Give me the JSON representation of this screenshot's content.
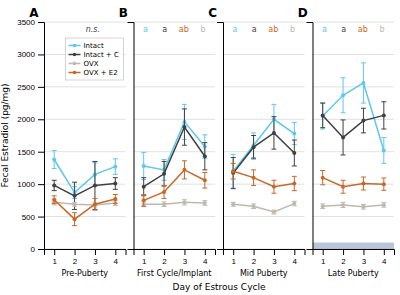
{
  "chart_data": [
    {
      "type": "line",
      "title": "A",
      "subtitle": "Pre-Puberty",
      "xlabel": "Day of Estrous Cycle",
      "ylabel": "Fecal Estradiol (pg/mg)",
      "x": [
        1,
        2,
        3,
        4
      ],
      "xlim": [
        0.5,
        4.5
      ],
      "xticks": [
        1,
        2,
        3,
        4
      ],
      "ylim": [
        0,
        3500
      ],
      "yticks": [
        0,
        500,
        1000,
        1500,
        2000,
        2500,
        3000,
        3500
      ],
      "grid": true,
      "legend": "upper right",
      "marker": "circle",
      "annotations": [
        {
          "text": "n.s.",
          "color": "#444444"
        }
      ],
      "series": [
        {
          "name": "Intact",
          "color": "#5bc8f0",
          "values": [
            1380,
            870,
            1150,
            1270
          ],
          "err": [
            140,
            90,
            180,
            120
          ]
        },
        {
          "name": "Intact + C",
          "color": "#404040",
          "values": [
            980,
            820,
            980,
            1010
          ],
          "err": [
            80,
            210,
            370,
            90
          ]
        },
        {
          "name": "OVX",
          "color": "#c0b8b0",
          "values": [
            720,
            690,
            680,
            710
          ],
          "err": [
            40,
            30,
            30,
            40
          ]
        },
        {
          "name": "OVX + E2",
          "color": "#c86828",
          "values": [
            760,
            460,
            690,
            770
          ],
          "err": [
            60,
            100,
            90,
            70
          ]
        }
      ]
    },
    {
      "type": "line",
      "title": "B",
      "subtitle": "First Cycle/Implant",
      "x": [
        1,
        2,
        3,
        4
      ],
      "xlim": [
        0.5,
        4.5
      ],
      "xticks": [
        1,
        2,
        3,
        4
      ],
      "ylim": [
        0,
        3500
      ],
      "yticks": [
        0,
        500,
        1000,
        1500,
        2000,
        2500,
        3000,
        3500
      ],
      "grid": true,
      "legend": false,
      "tick_labels": "x",
      "marker": "circle",
      "annotations": [
        {
          "text": "a",
          "color": "#5bc8f0"
        },
        {
          "text": "a",
          "color": "#404040"
        },
        {
          "text": "ab",
          "color": "#c86828"
        },
        {
          "text": "b",
          "color": "#c0b8b0"
        }
      ],
      "series": [
        {
          "name": "Intact",
          "color": "#5bc8f0",
          "values": [
            1280,
            1220,
            1960,
            1580
          ],
          "err": [
            210,
            160,
            270,
            180
          ]
        },
        {
          "name": "Intact + C",
          "color": "#404040",
          "values": [
            960,
            1160,
            1880,
            1430
          ],
          "err": [
            140,
            190,
            280,
            210
          ]
        },
        {
          "name": "OVX",
          "color": "#c0b8b0",
          "values": [
            690,
            690,
            720,
            710
          ],
          "err": [
            35,
            35,
            40,
            35
          ]
        },
        {
          "name": "OVX + E2",
          "color": "#c86828",
          "values": [
            750,
            880,
            1220,
            1060
          ],
          "err": [
            90,
            100,
            140,
            120
          ]
        }
      ]
    },
    {
      "type": "line",
      "title": "C",
      "subtitle": "Mid Puberty",
      "x": [
        1,
        2,
        3,
        4
      ],
      "xlim": [
        0.5,
        4.5
      ],
      "xticks": [
        1,
        2,
        3,
        4
      ],
      "ylim": [
        0,
        3500
      ],
      "yticks": [
        0,
        500,
        1000,
        1500,
        2000,
        2500,
        3000,
        3500
      ],
      "grid": true,
      "legend": false,
      "tick_labels": "x",
      "marker": "circle",
      "annotations": [
        {
          "text": "a",
          "color": "#5bc8f0"
        },
        {
          "text": "a",
          "color": "#404040"
        },
        {
          "text": "ab",
          "color": "#c86828"
        },
        {
          "text": "b",
          "color": "#c0b8b0"
        }
      ],
      "series": [
        {
          "name": "Intact",
          "color": "#5bc8f0",
          "values": [
            1200,
            1600,
            2000,
            1780
          ],
          "err": [
            260,
            190,
            230,
            170
          ]
        },
        {
          "name": "Intact + C",
          "color": "#404040",
          "values": [
            1170,
            1570,
            1790,
            1480
          ],
          "err": [
            240,
            180,
            250,
            200
          ]
        },
        {
          "name": "OVX",
          "color": "#c0b8b0",
          "values": [
            690,
            660,
            570,
            700
          ],
          "err": [
            30,
            35,
            30,
            35
          ]
        },
        {
          "name": "OVX + E2",
          "color": "#c86828",
          "values": [
            1200,
            1100,
            960,
            1010
          ],
          "err": [
            120,
            120,
            100,
            110
          ]
        }
      ]
    },
    {
      "type": "line",
      "title": "D",
      "subtitle": "Late Puberty",
      "x": [
        1,
        2,
        3,
        4
      ],
      "xlim": [
        0.5,
        4.5
      ],
      "xticks": [
        1,
        2,
        3,
        4
      ],
      "ylim": [
        0,
        3500
      ],
      "yticks": [
        0,
        500,
        1000,
        1500,
        2000,
        2500,
        3000,
        3500
      ],
      "grid": true,
      "legend": false,
      "tick_labels": "x",
      "marker": "circle",
      "bands": [
        {
          "y": [
            0,
            100
          ],
          "color": "#6080a8"
        }
      ],
      "annotations": [
        {
          "text": "a",
          "color": "#5bc8f0"
        },
        {
          "text": "a",
          "color": "#404040"
        },
        {
          "text": "ab",
          "color": "#c86828"
        },
        {
          "text": "b",
          "color": "#c0b8b0"
        }
      ],
      "series": [
        {
          "name": "Intact",
          "color": "#5bc8f0",
          "values": [
            2050,
            2370,
            2560,
            1520
          ],
          "err": [
            200,
            270,
            310,
            200
          ]
        },
        {
          "name": "Intact + C",
          "color": "#404040",
          "values": [
            2060,
            1720,
            1980,
            2060
          ],
          "err": [
            190,
            270,
            190,
            210
          ]
        },
        {
          "name": "OVX",
          "color": "#c0b8b0",
          "values": [
            660,
            680,
            650,
            680
          ],
          "err": [
            35,
            40,
            35,
            35
          ]
        },
        {
          "name": "OVX + E2",
          "color": "#c86828",
          "values": [
            1100,
            960,
            1010,
            1000
          ],
          "err": [
            110,
            100,
            100,
            95
          ]
        }
      ]
    }
  ]
}
